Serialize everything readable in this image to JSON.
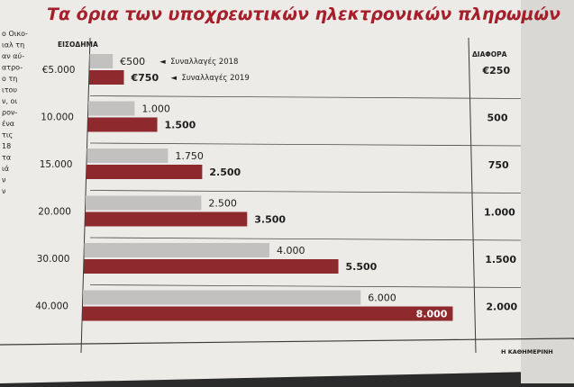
{
  "side_text": [
    "ο Οικο-",
    "ιαλ τη",
    "αν αύ-",
    "ατρο-",
    "ο τη",
    "ιτου",
    "ν, οι",
    "ρον-",
    "ένα",
    "τις",
    "18",
    "τα",
    "ιά",
    "ν",
    "ν"
  ],
  "credit": "Η ΚΑΘΗΜΕΡΙΝΗ",
  "colors": {
    "paper": "#ecebe8",
    "bar_2018": "#c3c1bf",
    "bar_2019": "#8e2a2e",
    "title": "#a51e2a",
    "text": "#1e1e1e",
    "header": "#6e6e6e"
  },
  "chart_data": {
    "type": "bar",
    "orientation": "horizontal",
    "title": "Τα όρια των υποχρεωτικών ηλεκτρονικών πληρωμών",
    "category_header": "ΕΙΣΟΔΗΜΑ",
    "difference_header": "ΔΙΑΦΟΡΑ",
    "categories": [
      "€5.000",
      "10.000",
      "15.000",
      "20.000",
      "30.000",
      "40.000"
    ],
    "series": [
      {
        "name": "Συναλλαγές 2018",
        "values": [
          500,
          1000,
          1750,
          2500,
          4000,
          6000
        ],
        "labels": [
          "€500",
          "1.000",
          "1.750",
          "2.500",
          "4.000",
          "6.000"
        ],
        "color": "#c3c1bf"
      },
      {
        "name": "Συναλλαγές 2019",
        "values": [
          750,
          1500,
          2500,
          3500,
          5500,
          8000
        ],
        "labels": [
          "€750",
          "1.500",
          "2.500",
          "3.500",
          "5.500",
          "8.000"
        ],
        "color": "#8e2a2e"
      }
    ],
    "difference": [
      "€250",
      "500",
      "750",
      "1.000",
      "1.500",
      "2.000"
    ],
    "xlim": [
      0,
      8000
    ],
    "legend": "inline-first-row",
    "grid": false
  }
}
